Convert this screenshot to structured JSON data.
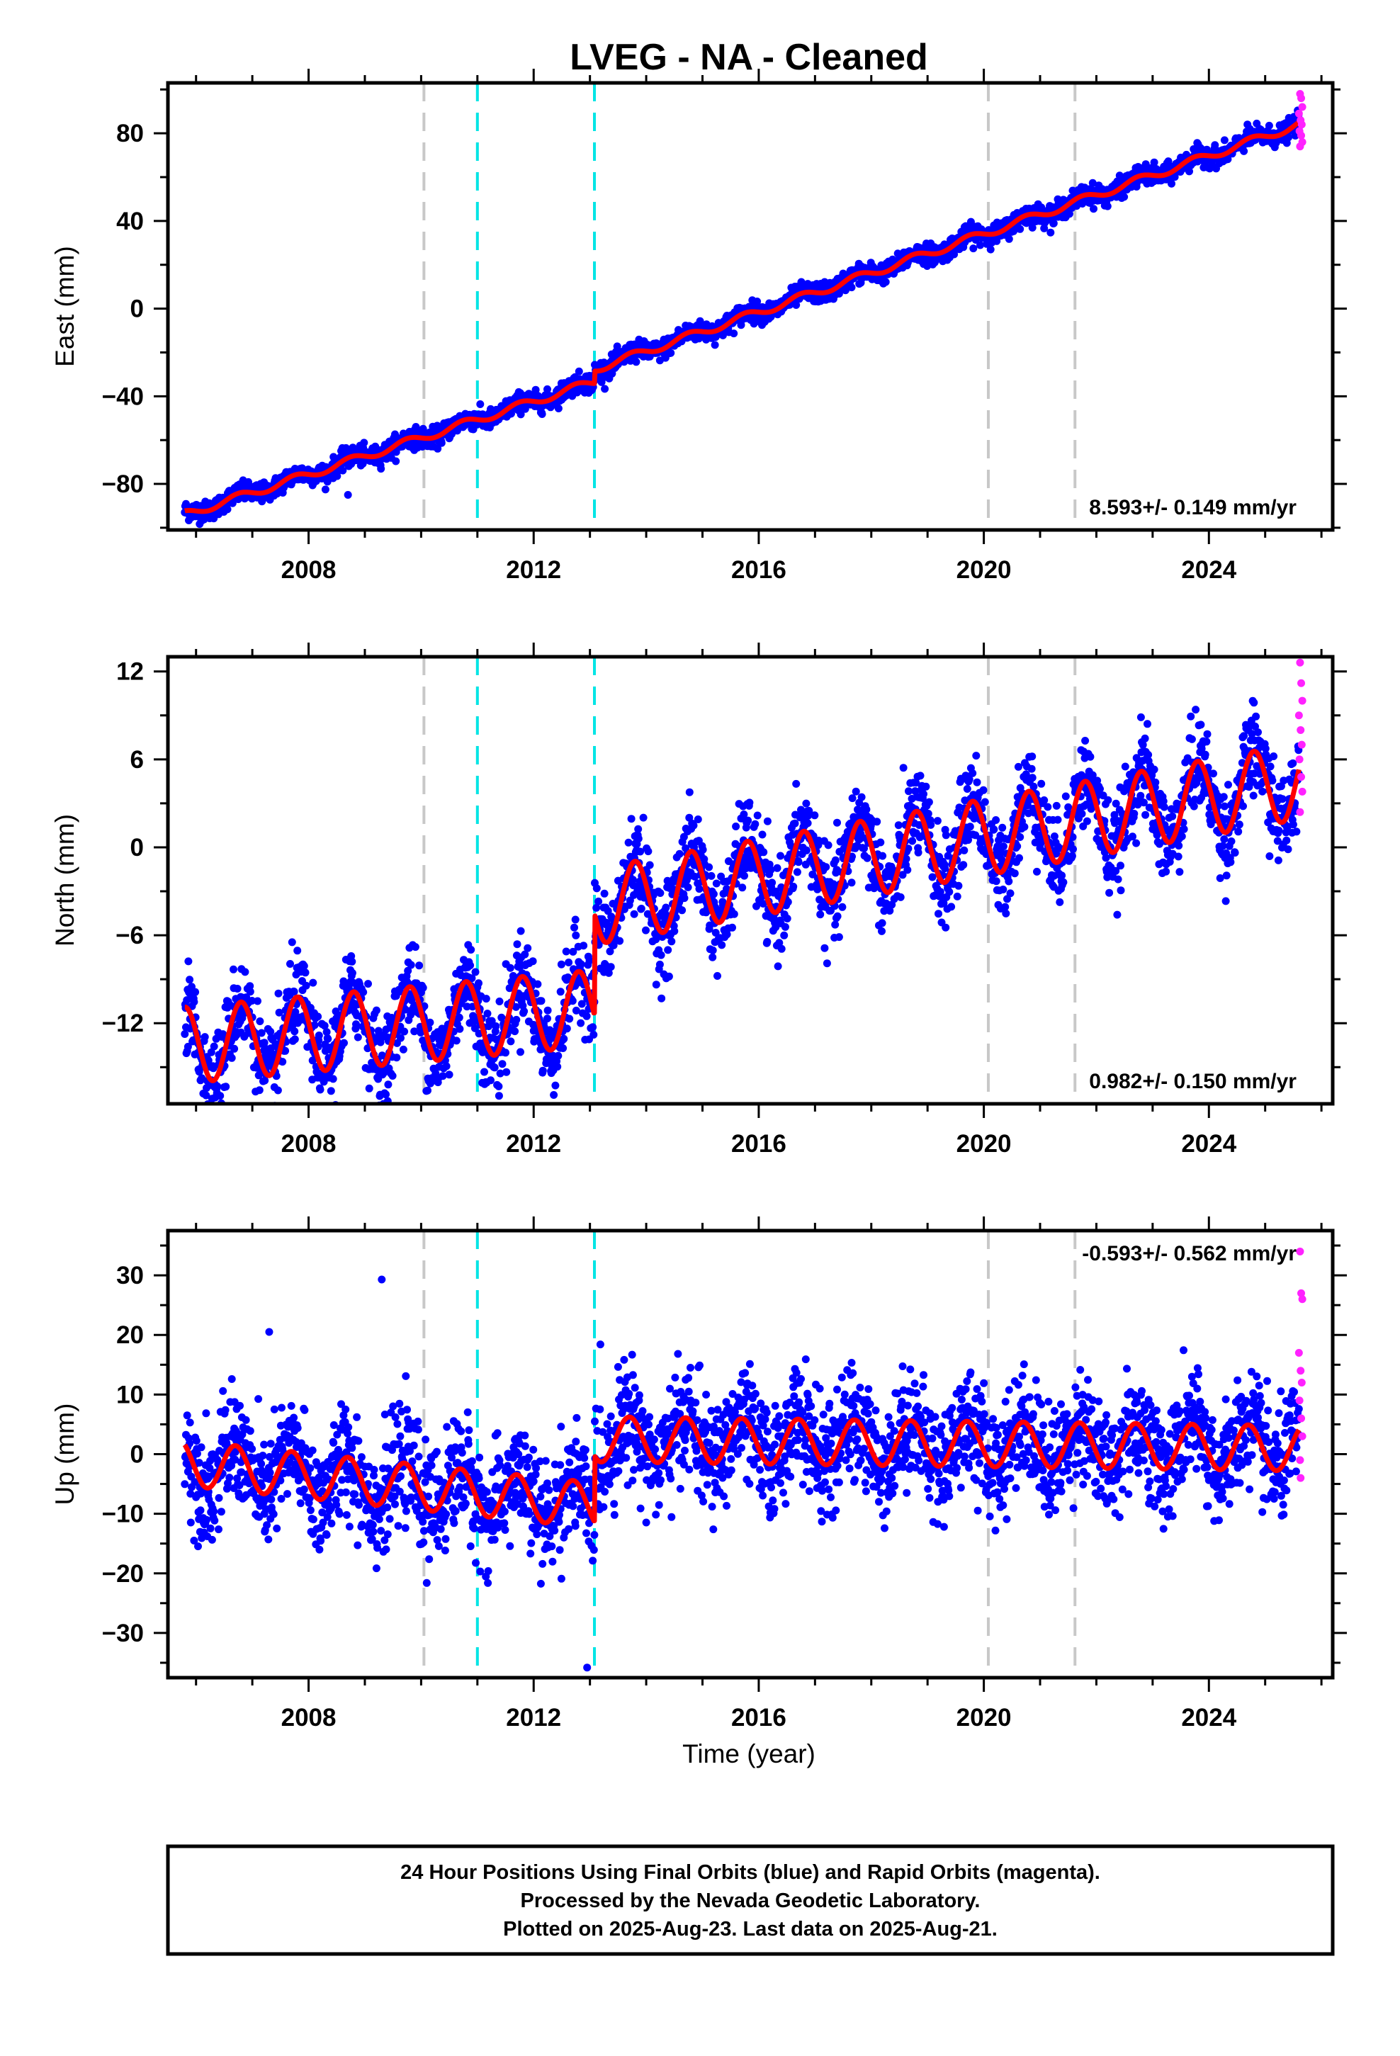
{
  "chart_data": {
    "type": "scatter",
    "title": "LVEG  - NA - Cleaned",
    "xlabel": "Time (year)",
    "xlim": [
      2005.5,
      2026.2
    ],
    "x_ticks": [
      2008,
      2012,
      2016,
      2020,
      2024
    ],
    "x_tick_labels": [
      "2008",
      "2012",
      "2016",
      "2020",
      "2024"
    ],
    "vertical_lines": [
      {
        "x": 2010.05,
        "color": "#c8c8c8"
      },
      {
        "x": 2011.0,
        "color": "#00e5e5"
      },
      {
        "x": 2013.08,
        "color": "#00e5e5"
      },
      {
        "x": 2020.08,
        "color": "#c8c8c8"
      },
      {
        "x": 2021.62,
        "color": "#c8c8c8"
      }
    ],
    "colors": {
      "final": "#0000ff",
      "rapid": "#ff22ff",
      "model": "#ff0000"
    },
    "panels": [
      {
        "name": "east",
        "ylabel": "East (mm)",
        "ylim": [
          -101,
          103
        ],
        "y_ticks": [
          -80,
          -40,
          0,
          40,
          80
        ],
        "y_tick_labels": [
          "−80",
          "−40",
          "0",
          "40",
          "80"
        ],
        "rate_label": "8.593+/- 0.149 mm/yr",
        "rate_position": "bottom-right",
        "model_offsets": [
          [
            2005.8,
            -94
          ],
          [
            2013.0,
            -34
          ],
          [
            2013.15,
            -27
          ],
          [
            2025.6,
            84
          ]
        ],
        "trend_mm_per_yr": 8.593,
        "seasonal": {
          "amplitude": 1.8,
          "phase": 0.5
        },
        "scatter_sigma": 2.2,
        "outliers": [
          [
            2008.7,
            -85
          ]
        ],
        "rapid_points": [
          [
            2025.62,
            98
          ],
          [
            2025.64,
            96
          ],
          [
            2025.66,
            92
          ],
          [
            2025.6,
            89
          ],
          [
            2025.63,
            86
          ],
          [
            2025.65,
            84
          ],
          [
            2025.61,
            81
          ],
          [
            2025.64,
            79
          ],
          [
            2025.66,
            76
          ],
          [
            2025.62,
            74
          ]
        ]
      },
      {
        "name": "north",
        "ylabel": "North (mm)",
        "ylim": [
          -17.5,
          13
        ],
        "y_ticks": [
          -12,
          -6,
          0,
          6,
          12
        ],
        "y_tick_labels": [
          "−12",
          "−6",
          "0",
          "6",
          "12"
        ],
        "rate_label": "0.982+/- 0.150 mm/yr",
        "rate_position": "bottom-right",
        "model_offsets": [
          [
            2005.8,
            -13.5
          ],
          [
            2013.0,
            -11.0
          ],
          [
            2013.15,
            -4.0
          ],
          [
            2025.6,
            4.5
          ]
        ],
        "trend_mm_per_yr": 0.982,
        "seasonal": {
          "amplitude": 2.6,
          "phase": 0.55
        },
        "scatter_sigma": 1.5,
        "outliers": [],
        "rapid_points": [
          [
            2025.62,
            12.6
          ],
          [
            2025.64,
            11.2
          ],
          [
            2025.66,
            10.0
          ],
          [
            2025.6,
            9.0
          ],
          [
            2025.63,
            8.0
          ],
          [
            2025.65,
            7.0
          ],
          [
            2025.61,
            6.0
          ],
          [
            2025.64,
            4.8
          ],
          [
            2025.66,
            3.8
          ],
          [
            2025.62,
            2.4
          ]
        ]
      },
      {
        "name": "up",
        "ylabel": "Up (mm)",
        "ylim": [
          -37.5,
          37.5
        ],
        "y_ticks": [
          -30,
          -20,
          -10,
          0,
          10,
          20,
          30
        ],
        "y_tick_labels": [
          "−30",
          "−20",
          "−10",
          "0",
          "10",
          "20",
          "30"
        ],
        "rate_label": "-0.593+/- 0.562 mm/yr",
        "rate_position": "top-right",
        "model_offsets": [
          [
            2005.8,
            -1.5
          ],
          [
            2013.0,
            -8.5
          ],
          [
            2013.15,
            2.5
          ],
          [
            2025.6,
            1.0
          ]
        ],
        "trend_mm_per_yr": -0.593,
        "seasonal": {
          "amplitude": 3.8,
          "phase": 0.45
        },
        "scatter_sigma": 4.6,
        "outliers": [
          [
            2009.3,
            29.3
          ],
          [
            2012.95,
            -35.8
          ],
          [
            2007.3,
            20.5
          ]
        ],
        "rapid_points": [
          [
            2025.62,
            34
          ],
          [
            2025.64,
            27
          ],
          [
            2025.66,
            26
          ],
          [
            2025.6,
            17
          ],
          [
            2025.63,
            14
          ],
          [
            2025.65,
            12
          ],
          [
            2025.61,
            9
          ],
          [
            2025.64,
            6
          ],
          [
            2025.66,
            3
          ],
          [
            2025.62,
            -1
          ],
          [
            2025.63,
            -4
          ]
        ]
      }
    ]
  },
  "footer": {
    "line1": "24 Hour Positions Using Final Orbits (blue) and Rapid Orbits (magenta).",
    "line2": "Processed by the Nevada Geodetic Laboratory.",
    "line3": "Plotted on 2025-Aug-23. Last data on 2025-Aug-21."
  }
}
